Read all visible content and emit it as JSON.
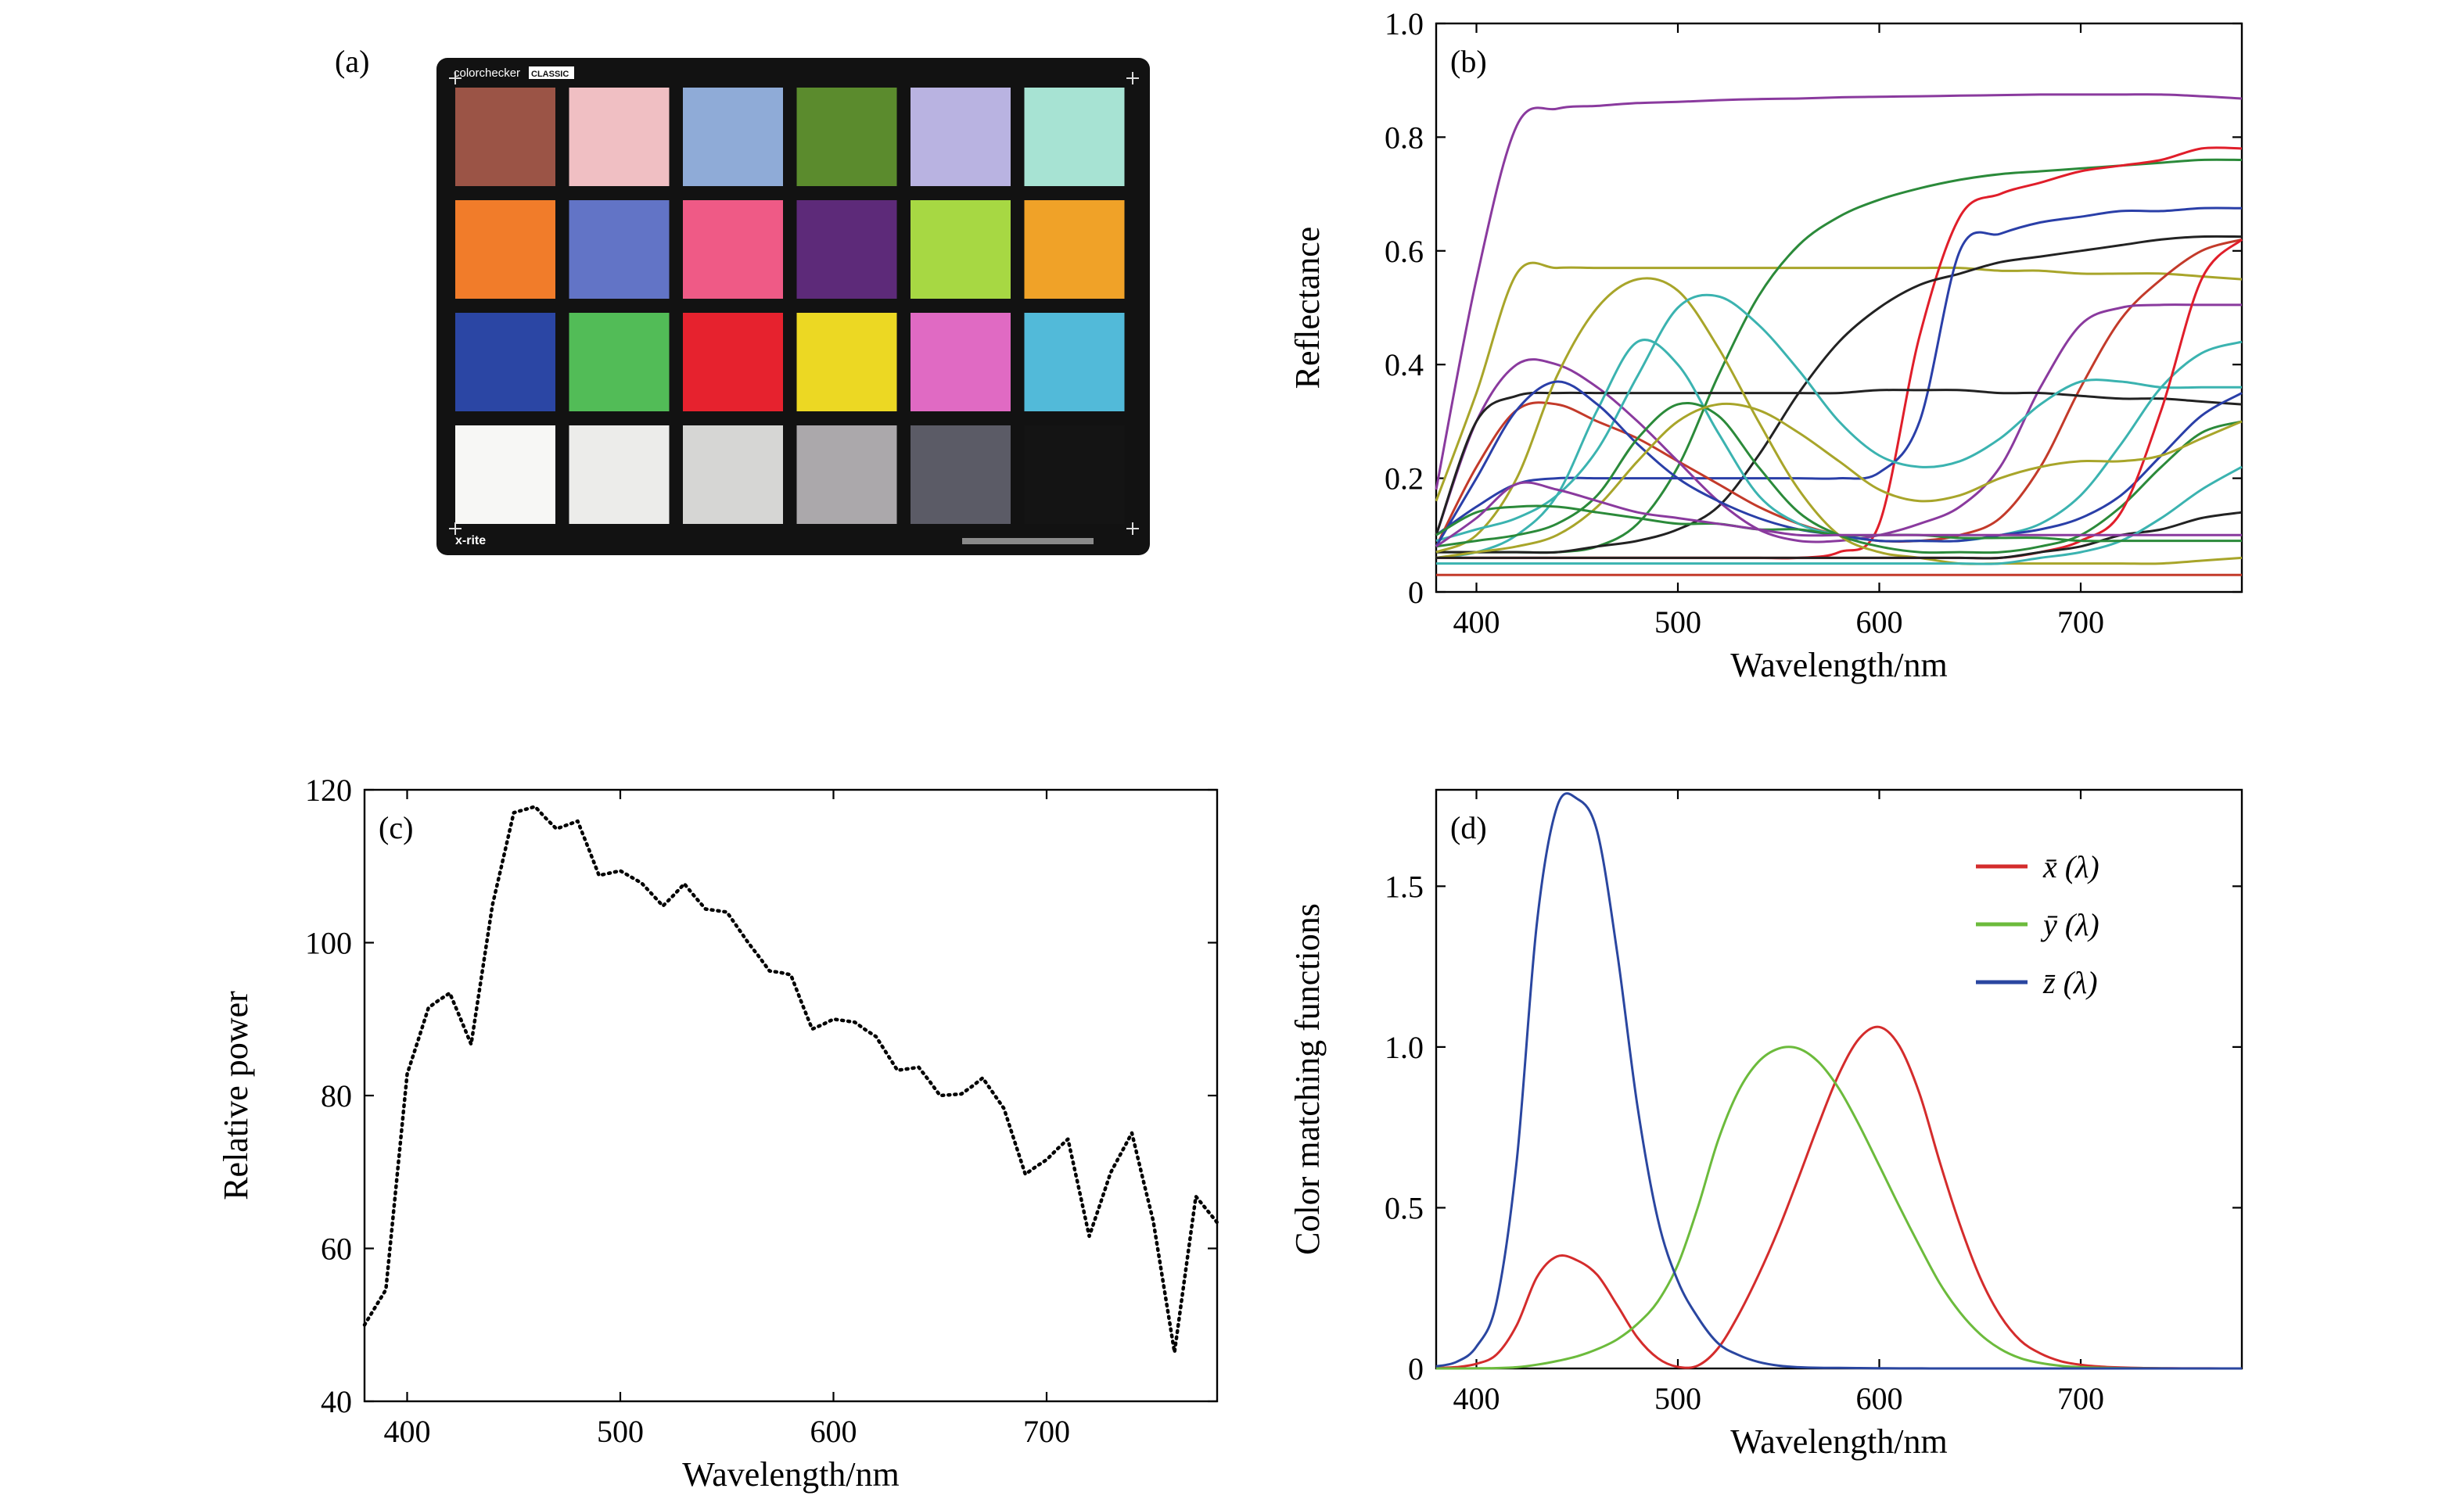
{
  "panels": {
    "a": {
      "label": "(a)",
      "brand_text": "colorchecker",
      "badge_text": "CLASSIC",
      "logo_text": "x-rite",
      "patch_colors": [
        [
          "#9b5446",
          "#f0bfc3",
          "#8fabd7",
          "#5b8b2d",
          "#b9b3e1",
          "#a7e3d3"
        ],
        [
          "#f17c2a",
          "#6274c6",
          "#ef5a86",
          "#5d2a79",
          "#a7d843",
          "#f0a228"
        ],
        [
          "#2b46a4",
          "#52bc57",
          "#e6222e",
          "#ecd823",
          "#e06ac3",
          "#52bad9"
        ],
        [
          "#f7f7f5",
          "#ececea",
          "#d6d6d4",
          "#aba8ab",
          "#5b5b66",
          "#141414"
        ]
      ]
    }
  },
  "chart_data": [
    {
      "panel": "b",
      "label": "(b)",
      "type": "line",
      "xlabel": "Wavelength/nm",
      "ylabel": "Reflectance",
      "xlim": [
        380,
        780
      ],
      "ylim": [
        0,
        1.0
      ],
      "xticks": [
        400,
        500,
        600,
        700
      ],
      "yticks": [
        0,
        0.2,
        0.4,
        0.6,
        0.8,
        1.0
      ],
      "yticklabels": [
        "0",
        "0.2",
        "0.4",
        "0.6",
        "0.8",
        "1.0"
      ],
      "x": [
        380,
        400,
        420,
        440,
        460,
        480,
        500,
        520,
        540,
        560,
        580,
        600,
        620,
        640,
        660,
        680,
        700,
        720,
        740,
        760,
        780
      ],
      "series": [
        {
          "color": "#8a3a9e",
          "values": [
            0.18,
            0.55,
            0.82,
            0.85,
            0.855,
            0.86,
            0.862,
            0.865,
            0.867,
            0.868,
            0.87,
            0.871,
            0.872,
            0.873,
            0.874,
            0.875,
            0.875,
            0.875,
            0.875,
            0.872,
            0.868
          ]
        },
        {
          "color": "#a8a52a",
          "values": [
            0.16,
            0.35,
            0.56,
            0.57,
            0.57,
            0.57,
            0.57,
            0.57,
            0.57,
            0.57,
            0.57,
            0.57,
            0.57,
            0.57,
            0.565,
            0.565,
            0.56,
            0.56,
            0.56,
            0.555,
            0.55
          ]
        },
        {
          "color": "#2b8a3a",
          "values": [
            0.07,
            0.07,
            0.07,
            0.07,
            0.08,
            0.12,
            0.22,
            0.38,
            0.52,
            0.61,
            0.66,
            0.69,
            0.71,
            0.725,
            0.735,
            0.74,
            0.745,
            0.75,
            0.755,
            0.76,
            0.76
          ]
        },
        {
          "color": "#e01e2a",
          "values": [
            0.06,
            0.06,
            0.06,
            0.06,
            0.06,
            0.06,
            0.06,
            0.06,
            0.06,
            0.06,
            0.07,
            0.12,
            0.45,
            0.66,
            0.7,
            0.72,
            0.74,
            0.75,
            0.76,
            0.78,
            0.78
          ]
        },
        {
          "color": "#222222",
          "values": [
            0.07,
            0.07,
            0.07,
            0.07,
            0.08,
            0.09,
            0.11,
            0.15,
            0.24,
            0.35,
            0.44,
            0.5,
            0.54,
            0.56,
            0.58,
            0.59,
            0.6,
            0.61,
            0.62,
            0.625,
            0.625
          ]
        },
        {
          "color": "#2a3fa8",
          "values": [
            0.1,
            0.15,
            0.19,
            0.2,
            0.2,
            0.2,
            0.2,
            0.2,
            0.2,
            0.2,
            0.2,
            0.21,
            0.3,
            0.6,
            0.63,
            0.65,
            0.66,
            0.67,
            0.67,
            0.675,
            0.675
          ]
        },
        {
          "color": "#c33a2a",
          "values": [
            0.08,
            0.22,
            0.32,
            0.33,
            0.3,
            0.27,
            0.23,
            0.19,
            0.15,
            0.12,
            0.1,
            0.09,
            0.09,
            0.1,
            0.13,
            0.22,
            0.36,
            0.48,
            0.55,
            0.6,
            0.62
          ]
        },
        {
          "color": "#8a3a9e",
          "values": [
            0.1,
            0.3,
            0.4,
            0.4,
            0.36,
            0.3,
            0.23,
            0.16,
            0.11,
            0.09,
            0.09,
            0.1,
            0.12,
            0.15,
            0.22,
            0.36,
            0.47,
            0.5,
            0.505,
            0.505,
            0.505
          ]
        },
        {
          "color": "#222222",
          "values": [
            0.1,
            0.3,
            0.345,
            0.35,
            0.35,
            0.35,
            0.35,
            0.35,
            0.35,
            0.35,
            0.35,
            0.355,
            0.355,
            0.355,
            0.35,
            0.35,
            0.345,
            0.34,
            0.34,
            0.335,
            0.33
          ]
        },
        {
          "color": "#3bb3b0",
          "values": [
            0.06,
            0.07,
            0.1,
            0.17,
            0.32,
            0.44,
            0.4,
            0.28,
            0.17,
            0.12,
            0.1,
            0.09,
            0.09,
            0.09,
            0.1,
            0.12,
            0.17,
            0.26,
            0.36,
            0.42,
            0.44
          ]
        },
        {
          "color": "#a8a52a",
          "values": [
            0.07,
            0.1,
            0.2,
            0.38,
            0.5,
            0.55,
            0.53,
            0.43,
            0.3,
            0.18,
            0.1,
            0.07,
            0.06,
            0.05,
            0.05,
            0.05,
            0.05,
            0.05,
            0.05,
            0.055,
            0.06
          ]
        },
        {
          "color": "#3bb3b0",
          "values": [
            0.09,
            0.11,
            0.13,
            0.17,
            0.25,
            0.38,
            0.5,
            0.52,
            0.47,
            0.39,
            0.3,
            0.24,
            0.22,
            0.23,
            0.27,
            0.33,
            0.37,
            0.37,
            0.36,
            0.36,
            0.36
          ]
        },
        {
          "color": "#2a3fa8",
          "values": [
            0.08,
            0.2,
            0.32,
            0.37,
            0.33,
            0.26,
            0.2,
            0.16,
            0.13,
            0.11,
            0.1,
            0.09,
            0.09,
            0.09,
            0.1,
            0.11,
            0.13,
            0.17,
            0.24,
            0.31,
            0.35
          ]
        },
        {
          "color": "#2b8a3a",
          "values": [
            0.08,
            0.09,
            0.1,
            0.12,
            0.17,
            0.27,
            0.33,
            0.31,
            0.22,
            0.14,
            0.1,
            0.08,
            0.07,
            0.07,
            0.07,
            0.08,
            0.1,
            0.15,
            0.22,
            0.28,
            0.3
          ]
        },
        {
          "color": "#e01e2a",
          "values": [
            0.06,
            0.06,
            0.06,
            0.06,
            0.06,
            0.06,
            0.06,
            0.06,
            0.06,
            0.06,
            0.06,
            0.06,
            0.06,
            0.06,
            0.06,
            0.07,
            0.09,
            0.14,
            0.32,
            0.55,
            0.62
          ]
        },
        {
          "color": "#a8a52a",
          "values": [
            0.06,
            0.07,
            0.08,
            0.1,
            0.15,
            0.23,
            0.3,
            0.33,
            0.32,
            0.28,
            0.23,
            0.18,
            0.16,
            0.17,
            0.2,
            0.22,
            0.23,
            0.23,
            0.24,
            0.27,
            0.3
          ]
        },
        {
          "color": "#222222",
          "values": [
            0.06,
            0.06,
            0.06,
            0.06,
            0.06,
            0.06,
            0.06,
            0.06,
            0.06,
            0.06,
            0.06,
            0.06,
            0.06,
            0.06,
            0.06,
            0.07,
            0.08,
            0.1,
            0.11,
            0.13,
            0.14
          ]
        },
        {
          "color": "#3bb3b0",
          "values": [
            0.05,
            0.05,
            0.05,
            0.05,
            0.05,
            0.05,
            0.05,
            0.05,
            0.05,
            0.05,
            0.05,
            0.05,
            0.05,
            0.05,
            0.05,
            0.06,
            0.07,
            0.09,
            0.13,
            0.18,
            0.22
          ]
        },
        {
          "color": "#2b8a3a",
          "values": [
            0.1,
            0.14,
            0.15,
            0.15,
            0.14,
            0.13,
            0.12,
            0.12,
            0.11,
            0.11,
            0.1,
            0.1,
            0.1,
            0.095,
            0.095,
            0.095,
            0.09,
            0.09,
            0.09,
            0.09,
            0.09
          ]
        },
        {
          "color": "#c33a2a",
          "values": [
            0.03,
            0.03,
            0.03,
            0.03,
            0.03,
            0.03,
            0.03,
            0.03,
            0.03,
            0.03,
            0.03,
            0.03,
            0.03,
            0.03,
            0.03,
            0.03,
            0.03,
            0.03,
            0.03,
            0.03,
            0.03
          ]
        },
        {
          "color": "#8a3a9e",
          "values": [
            0.08,
            0.13,
            0.19,
            0.18,
            0.16,
            0.14,
            0.13,
            0.12,
            0.11,
            0.1,
            0.1,
            0.1,
            0.1,
            0.1,
            0.1,
            0.1,
            0.1,
            0.1,
            0.1,
            0.1,
            0.1
          ]
        }
      ]
    },
    {
      "panel": "c",
      "label": "(c)",
      "type": "line",
      "line_style": "dotted",
      "xlabel": "Wavelength/nm",
      "ylabel": "Relative power",
      "xlim": [
        380,
        780
      ],
      "ylim": [
        40,
        120
      ],
      "xticks": [
        400,
        500,
        600,
        700
      ],
      "yticks": [
        40,
        60,
        80,
        100,
        120
      ],
      "x": [
        380,
        385,
        390,
        395,
        400,
        405,
        410,
        415,
        420,
        425,
        430,
        435,
        440,
        445,
        450,
        455,
        460,
        465,
        470,
        475,
        480,
        485,
        490,
        495,
        500,
        505,
        510,
        515,
        520,
        525,
        530,
        535,
        540,
        545,
        550,
        555,
        560,
        565,
        570,
        575,
        580,
        585,
        590,
        595,
        600,
        605,
        610,
        615,
        620,
        625,
        630,
        635,
        640,
        645,
        650,
        655,
        660,
        665,
        670,
        675,
        680,
        685,
        690,
        695,
        700,
        705,
        710,
        715,
        720,
        725,
        730,
        735,
        740,
        745,
        750,
        755,
        760,
        765,
        770,
        775,
        780
      ],
      "series": [
        {
          "color": "#000000",
          "values": [
            50.0,
            52.3,
            54.6,
            68.7,
            82.8,
            87.1,
            91.5,
            92.5,
            93.4,
            90.1,
            86.7,
            95.8,
            104.9,
            110.9,
            117.0,
            117.4,
            117.8,
            116.3,
            114.9,
            115.4,
            115.9,
            112.4,
            108.8,
            109.1,
            109.4,
            108.6,
            107.8,
            106.3,
            104.8,
            106.2,
            107.7,
            106.0,
            104.4,
            104.2,
            104.0,
            102.0,
            100.0,
            98.2,
            96.3,
            96.1,
            95.8,
            92.2,
            88.7,
            89.3,
            90.0,
            89.8,
            89.6,
            88.6,
            87.7,
            85.5,
            83.3,
            83.5,
            83.7,
            81.9,
            80.0,
            80.1,
            80.2,
            81.2,
            82.3,
            80.3,
            78.3,
            74.0,
            69.7,
            70.7,
            71.6,
            73.0,
            74.3,
            68.0,
            61.6,
            65.7,
            69.9,
            72.5,
            75.1,
            69.3,
            63.6,
            55.0,
            46.4,
            56.6,
            66.8,
            65.1,
            63.4
          ]
        }
      ]
    },
    {
      "panel": "d",
      "label": "(d)",
      "type": "line",
      "xlabel": "Wavelength/nm",
      "ylabel": "Color matching functions",
      "xlim": [
        380,
        780
      ],
      "ylim": [
        0,
        1.8
      ],
      "xticks": [
        400,
        500,
        600,
        700
      ],
      "yticks": [
        0,
        0.5,
        1.0,
        1.5
      ],
      "yticklabels": [
        "0",
        "0.5",
        "1.0",
        "1.5"
      ],
      "legend_position": "top-right",
      "x": [
        380,
        390,
        400,
        410,
        420,
        430,
        440,
        450,
        460,
        470,
        480,
        490,
        500,
        510,
        520,
        530,
        540,
        550,
        560,
        570,
        580,
        590,
        600,
        610,
        620,
        630,
        640,
        650,
        660,
        670,
        680,
        690,
        700,
        710,
        720,
        730,
        740,
        750,
        760,
        770,
        780
      ],
      "series": [
        {
          "name": "x̄ (λ)",
          "color": "#d42c2c",
          "values": [
            0.0014,
            0.0042,
            0.0143,
            0.0435,
            0.1344,
            0.2839,
            0.3483,
            0.3362,
            0.2908,
            0.1954,
            0.0956,
            0.032,
            0.0049,
            0.0093,
            0.0633,
            0.1655,
            0.2904,
            0.4334,
            0.5945,
            0.7621,
            0.9163,
            1.0263,
            1.0622,
            1.0026,
            0.8544,
            0.6424,
            0.4479,
            0.2835,
            0.1649,
            0.0874,
            0.0468,
            0.0227,
            0.0114,
            0.0058,
            0.0029,
            0.0014,
            0.0007,
            0.0003,
            0.0002,
            0.0001,
            0.0
          ]
        },
        {
          "name": "ȳ (λ)",
          "color": "#6cbb3c",
          "values": [
            0.0,
            0.0001,
            0.0004,
            0.0012,
            0.004,
            0.0116,
            0.023,
            0.038,
            0.06,
            0.091,
            0.139,
            0.208,
            0.323,
            0.503,
            0.71,
            0.862,
            0.954,
            0.995,
            0.995,
            0.952,
            0.87,
            0.757,
            0.631,
            0.503,
            0.381,
            0.265,
            0.175,
            0.107,
            0.061,
            0.032,
            0.017,
            0.0082,
            0.0041,
            0.0021,
            0.001,
            0.0005,
            0.0002,
            0.0001,
            0.0001,
            0.0,
            0.0
          ]
        },
        {
          "name": "z̄ (λ)",
          "color": "#2a46a0",
          "values": [
            0.0065,
            0.0201,
            0.0679,
            0.2074,
            0.6456,
            1.3856,
            1.7471,
            1.7721,
            1.6692,
            1.2876,
            0.813,
            0.4652,
            0.272,
            0.1582,
            0.0782,
            0.0422,
            0.0203,
            0.0087,
            0.0039,
            0.0021,
            0.0017,
            0.0011,
            0.0008,
            0.0003,
            0.0002,
            0.0,
            0.0,
            0.0,
            0.0,
            0.0,
            0.0,
            0.0,
            0.0,
            0.0,
            0.0,
            0.0,
            0.0,
            0.0,
            0.0,
            0.0,
            0.0
          ]
        }
      ]
    }
  ]
}
